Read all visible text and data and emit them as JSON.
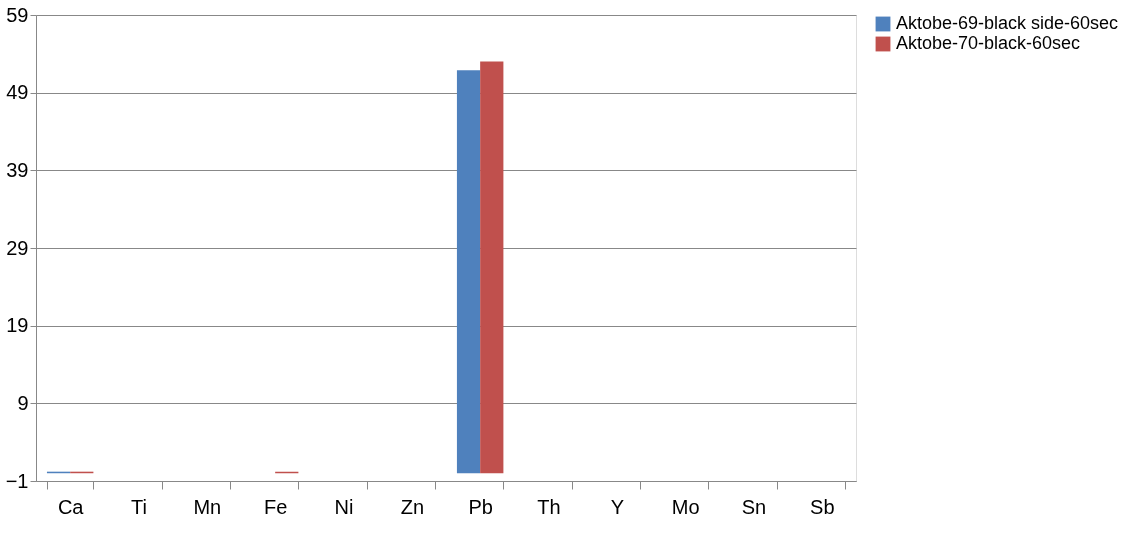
{
  "chart_data": {
    "type": "bar",
    "categories": [
      "Ca",
      "Ti",
      "Mn",
      "Fe",
      "Ni",
      "Zn",
      "Pb",
      "Th",
      "Y",
      "Mo",
      "Sn",
      "Sb"
    ],
    "series": [
      {
        "name": "Aktobe-69-black side-60sec",
        "color": "#4f81bd",
        "values": [
          0.2,
          0,
          0,
          0,
          0,
          0,
          51.9,
          0,
          0,
          0,
          0,
          0
        ]
      },
      {
        "name": "Aktobe-70-black-60sec",
        "color": "#c0504d",
        "values": [
          0.2,
          0,
          0,
          0.2,
          0,
          0,
          53.0,
          0,
          0,
          0,
          0,
          0
        ]
      }
    ],
    "ylim": [
      -1,
      59
    ],
    "yticks": [
      -1,
      9,
      19,
      29,
      39,
      49,
      59
    ],
    "grid": "y",
    "legend": "right"
  }
}
